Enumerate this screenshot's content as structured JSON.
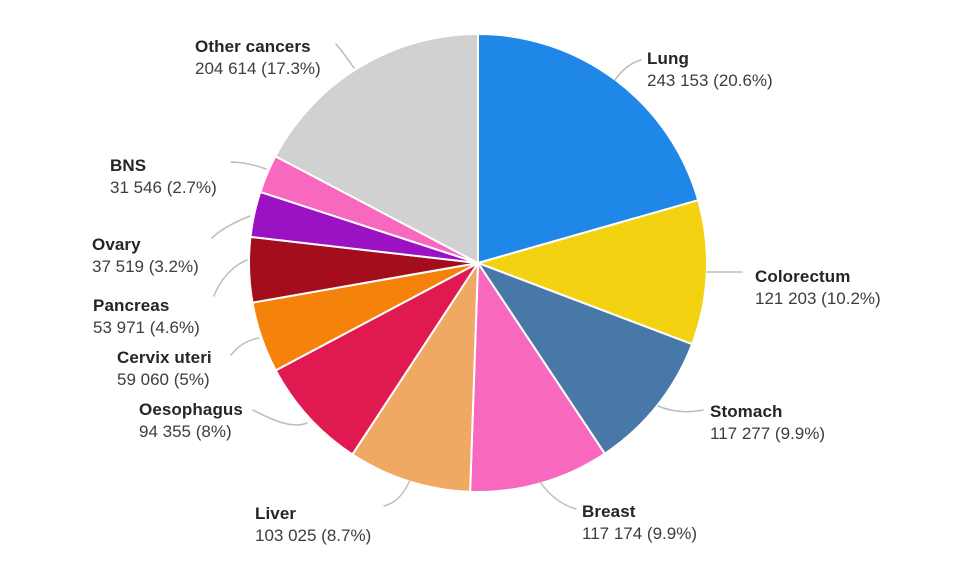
{
  "chart_data": {
    "type": "pie",
    "title": "",
    "legend_position": "none",
    "label_style": "outside-with-leader-lines",
    "start_angle": "top",
    "direction": "clockwise",
    "separator_color": "#ffffff",
    "leader_line_color": "#bdbdbd",
    "slices": [
      {
        "label": "Lung",
        "value": 243153,
        "value_text": "243 153 (20.6%)",
        "percent": 20.6,
        "color": "#1F87E8"
      },
      {
        "label": "Colorectum",
        "value": 121203,
        "value_text": "121 203 (10.2%)",
        "percent": 10.2,
        "color": "#F3D211"
      },
      {
        "label": "Stomach",
        "value": 117277,
        "value_text": "117 277 (9.9%)",
        "percent": 9.9,
        "color": "#4878A8"
      },
      {
        "label": "Breast",
        "value": 117174,
        "value_text": "117 174 (9.9%)",
        "percent": 9.9,
        "color": "#F868BE"
      },
      {
        "label": "Liver",
        "value": 103025,
        "value_text": "103 025 (8.7%)",
        "percent": 8.7,
        "color": "#F0A963"
      },
      {
        "label": "Oesophagus",
        "value": 94355,
        "value_text": "94 355 (8%)",
        "percent": 8.0,
        "color": "#E01950"
      },
      {
        "label": "Cervix uteri",
        "value": 59060,
        "value_text": "59 060 (5%)",
        "percent": 5.0,
        "color": "#F5820A"
      },
      {
        "label": "Pancreas",
        "value": 53971,
        "value_text": "53 971 (4.6%)",
        "percent": 4.6,
        "color": "#A40E1C"
      },
      {
        "label": "Ovary",
        "value": 37519,
        "value_text": "37 519 (3.2%)",
        "percent": 3.2,
        "color": "#9B11C4"
      },
      {
        "label": "BNS",
        "value": 31546,
        "value_text": "31 546 (2.7%)",
        "percent": 2.7,
        "color": "#F868BE"
      },
      {
        "label": "Other cancers",
        "value": 204614,
        "value_text": "204 614 (17.3%)",
        "percent": 17.3,
        "color": "#D1D1D1"
      }
    ]
  }
}
